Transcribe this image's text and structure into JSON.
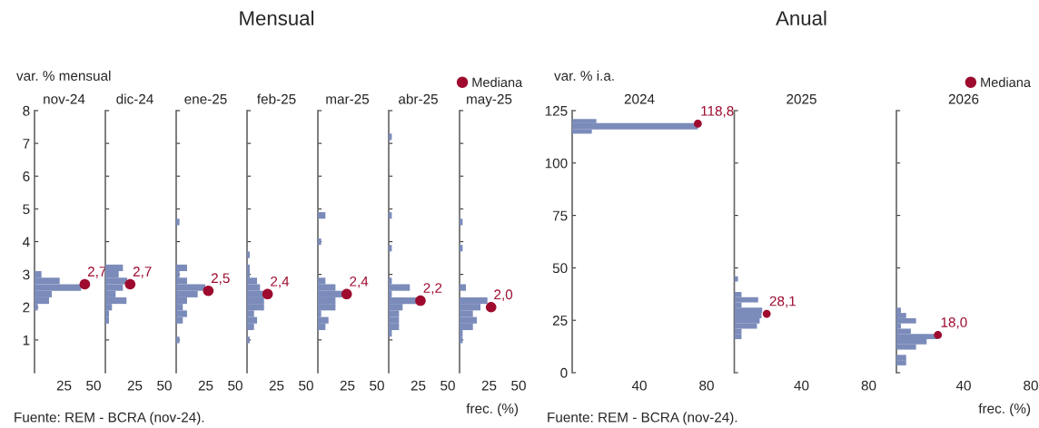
{
  "chart_data": [
    {
      "type": "histogram",
      "orientation": "horizontal",
      "subtitle": "nov-24",
      "ylabel": "var. % mensual",
      "annotations": [
        "Fuente: REM - BCRA (nov-24).",
        {
          "text": "2,7",
          "x": 42.6,
          "y": 2.7
        }
      ],
      "xlim": [
        0,
        50
      ],
      "xticks": [
        25,
        50
      ],
      "ylim": [
        0,
        8
      ],
      "yticks": [
        1,
        2,
        3,
        4,
        5,
        6,
        7,
        8
      ],
      "legend": false,
      "grid": false,
      "series": [
        {
          "color": "#7b8bba",
          "bins": [
            1.9,
            2.1,
            2.3,
            2.5,
            2.7,
            2.9,
            3.1
          ],
          "values": [
            2.8,
            12.3,
            14.6,
            39.5,
            21.3,
            5.9
          ]
        },
        {
          "type": "scatter",
          "color": "#9e0b2f",
          "x": [
            2.7
          ],
          "values": [
            42.6
          ]
        }
      ]
    },
    {
      "type": "histogram",
      "orientation": "horizontal",
      "subtitle": "dic-24",
      "annotations": [
        {
          "text": "2,7",
          "x": 21.0,
          "y": 2.7
        }
      ],
      "xlim": [
        0,
        50
      ],
      "xticks": [
        25,
        50
      ],
      "ylim": [
        0,
        8
      ],
      "yticks": [
        1,
        2,
        3,
        4,
        5,
        6,
        7,
        8
      ],
      "tick_labels": "x",
      "legend": false,
      "grid": false,
      "series": [
        {
          "color": "#7b8bba",
          "bins": [
            1.5,
            1.7,
            1.9,
            2.1,
            2.3,
            2.5,
            2.7,
            2.9,
            3.1,
            3.3
          ],
          "values": [
            3.1,
            3.1,
            5.6,
            17.9,
            8.7,
            14.9,
            18.5,
            11.3,
            14.9
          ]
        },
        {
          "type": "scatter",
          "color": "#9e0b2f",
          "x": [
            2.7
          ],
          "values": [
            21.0
          ]
        }
      ]
    },
    {
      "type": "histogram",
      "orientation": "horizontal",
      "subtitle": "ene-25",
      "annotations": [
        {
          "text": "2,5",
          "x": 27.2,
          "y": 2.5
        }
      ],
      "xlim": [
        0,
        50
      ],
      "xticks": [
        25,
        50
      ],
      "ylim": [
        0,
        8
      ],
      "yticks": [
        1,
        2,
        3,
        4,
        5,
        6,
        7,
        8
      ],
      "tick_labels": "x",
      "legend": false,
      "grid": false,
      "series": [
        {
          "color": "#7b8bba",
          "bins": [
            0.9,
            1.1,
            1.3,
            1.5,
            1.7,
            1.9,
            2.1,
            2.3,
            2.5,
            2.7,
            2.9,
            3.1,
            3.3,
            3.5,
            3.7,
            3.9,
            4.1,
            4.3,
            4.5,
            4.7
          ],
          "values": [
            2.8,
            0,
            0,
            5.6,
            9.2,
            5.6,
            9.2,
            18.2,
            24.6,
            9.2,
            2.8,
            9.2,
            0,
            0,
            0,
            0,
            0,
            0,
            2.8
          ]
        },
        {
          "type": "scatter",
          "color": "#9e0b2f",
          "x": [
            2.5
          ],
          "values": [
            27.2
          ]
        }
      ]
    },
    {
      "type": "histogram",
      "orientation": "horizontal",
      "title": "Mensual",
      "subtitle": "feb-25",
      "annotations": [
        {
          "text": "2,4",
          "x": 17.4,
          "y": 2.4
        }
      ],
      "xlim": [
        0,
        50
      ],
      "xticks": [
        25,
        50
      ],
      "ylim": [
        0,
        8
      ],
      "yticks": [
        1,
        2,
        3,
        4,
        5,
        6,
        7,
        8
      ],
      "tick_labels": "x",
      "legend": false,
      "grid": false,
      "series": [
        {
          "color": "#7b8bba",
          "bins": [
            0.9,
            1.1,
            1.3,
            1.5,
            1.7,
            1.9,
            2.1,
            2.3,
            2.5,
            2.7,
            2.9,
            3.1,
            3.3,
            3.5,
            3.7
          ],
          "values": [
            2.3,
            0,
            5.9,
            8.5,
            5.9,
            14.4,
            14.4,
            14.4,
            11,
            8.5,
            2.3,
            2.3,
            0,
            2.3
          ]
        },
        {
          "type": "scatter",
          "color": "#9e0b2f",
          "x": [
            2.4
          ],
          "values": [
            17.4
          ]
        }
      ]
    },
    {
      "type": "histogram",
      "orientation": "horizontal",
      "subtitle": "mar-25",
      "annotations": [
        {
          "text": "2,4",
          "x": 24.4,
          "y": 2.4
        }
      ],
      "xlim": [
        0,
        50
      ],
      "xticks": [
        25,
        50
      ],
      "ylim": [
        0,
        8
      ],
      "yticks": [
        1,
        2,
        3,
        4,
        5,
        6,
        7,
        8
      ],
      "tick_labels": "x",
      "legend": false,
      "grid": false,
      "series": [
        {
          "color": "#7b8bba",
          "bins": [
            1.3,
            1.5,
            1.7,
            1.9,
            2.1,
            2.3,
            2.5,
            2.7,
            2.9,
            3.1,
            3.3,
            3.5,
            3.7,
            3.9,
            4.1,
            4.3,
            4.5,
            4.7,
            4.9
          ],
          "values": [
            6.4,
            9.0,
            2.8,
            14.9,
            14.9,
            21.3,
            14.9,
            6.4,
            0,
            0,
            0,
            0,
            0,
            2.8,
            0,
            0,
            0,
            6.4
          ]
        },
        {
          "type": "scatter",
          "color": "#9e0b2f",
          "x": [
            2.4
          ],
          "values": [
            24.4
          ]
        }
      ]
    },
    {
      "type": "histogram",
      "orientation": "horizontal",
      "subtitle": "abr-25",
      "annotations": [
        {
          "text": "2,2",
          "x": 26.9,
          "y": 2.2
        }
      ],
      "xlim": [
        0,
        50
      ],
      "xticks": [
        25,
        50
      ],
      "ylim": [
        0,
        8
      ],
      "yticks": [
        1,
        2,
        3,
        4,
        5,
        6,
        7,
        8
      ],
      "tick_labels": "x",
      "legend": false,
      "grid": false,
      "series": [
        {
          "color": "#7b8bba",
          "bins": [
            1.1,
            1.3,
            1.5,
            1.7,
            1.9,
            2.1,
            2.3,
            2.5,
            2.7,
            2.9,
            3.1,
            3.3,
            3.5,
            3.7,
            3.9,
            4.1,
            4.3,
            4.5,
            4.7,
            4.9,
            5.1,
            5.3,
            5.5,
            5.7,
            5.9,
            6.1,
            6.3,
            6.5,
            6.7,
            6.9,
            7.1,
            7.3
          ],
          "values": [
            2.6,
            8.7,
            8.7,
            8.7,
            11.8,
            30.3,
            2.6,
            17.9,
            2.6,
            0,
            0,
            0,
            0,
            2.6,
            0,
            0,
            0,
            0,
            2.6,
            0,
            0,
            0,
            0,
            0,
            0,
            0,
            0,
            0,
            0,
            0,
            2.6
          ]
        },
        {
          "type": "scatter",
          "color": "#9e0b2f",
          "x": [
            2.2
          ],
          "values": [
            26.9
          ]
        }
      ]
    },
    {
      "type": "histogram",
      "orientation": "horizontal",
      "subtitle": "may-25",
      "xlabel": "frec. (%)",
      "annotations": [
        {
          "text": "2,0",
          "x": 26.7,
          "y": 2.0
        }
      ],
      "xlim": [
        0,
        50
      ],
      "xticks": [
        25,
        50
      ],
      "ylim": [
        0,
        8
      ],
      "yticks": [
        1,
        2,
        3,
        4,
        5,
        6,
        7,
        8
      ],
      "tick_labels": "x",
      "legend": "top",
      "grid": false,
      "series": [
        {
          "color": "#7b8bba",
          "bins": [
            0.9,
            1.1,
            1.3,
            1.5,
            1.7,
            1.9,
            2.1,
            2.3,
            2.5,
            2.7,
            2.9,
            3.1,
            3.3,
            3.5,
            3.7,
            3.9,
            4.1,
            4.3,
            4.5,
            4.7
          ],
          "values": [
            2.6,
            2.6,
            11.3,
            14.6,
            11.3,
            17.7,
            23.6,
            0,
            5.4,
            0,
            0,
            0,
            0,
            0,
            2.6,
            0,
            0,
            0,
            2.6
          ]
        },
        {
          "type": "scatter",
          "name": "Mediana",
          "color": "#9e0b2f",
          "x": [
            2.0
          ],
          "values": [
            26.7
          ]
        }
      ]
    },
    {
      "type": "histogram",
      "orientation": "horizontal",
      "subtitle": "2024",
      "ylabel": "var. % i.a.",
      "annotations": [
        "Fuente: REM - BCRA (nov-24).",
        {
          "text": "118,8",
          "x": 74.8,
          "y": 118.8
        }
      ],
      "xlim": [
        0,
        80
      ],
      "xticks": [
        40,
        80
      ],
      "ylim": [
        0,
        125
      ],
      "yticks": [
        0,
        25,
        50,
        75,
        100,
        125
      ],
      "legend": false,
      "grid": false,
      "series": [
        {
          "color": "#7b8bba",
          "bins": [
            114,
            116,
            119,
            121
          ],
          "values": [
            11.7,
            74.8,
            14.4
          ]
        },
        {
          "type": "scatter",
          "color": "#9e0b2f",
          "x": [
            118.8
          ],
          "values": [
            74.8
          ]
        }
      ]
    },
    {
      "type": "histogram",
      "orientation": "horizontal",
      "title": "Anual",
      "subtitle": "2025",
      "annotations": [
        {
          "text": "28,1",
          "x": 19.3,
          "y": 28.1
        }
      ],
      "xlim": [
        0,
        80
      ],
      "xticks": [
        40,
        80
      ],
      "ylim": [
        0,
        125
      ],
      "yticks": [
        0,
        25,
        50,
        75,
        100,
        125
      ],
      "tick_labels": "x",
      "legend": false,
      "grid": false,
      "series": [
        {
          "color": "#7b8bba",
          "bins": [
            16,
            18.5,
            21,
            23.5,
            26,
            28.5,
            31,
            33.5,
            36,
            38.5,
            41,
            43.5,
            46
          ],
          "values": [
            4.3,
            4.3,
            13.5,
            15.1,
            16.2,
            16.6,
            4.3,
            14.2,
            4.3,
            0,
            0,
            2.2
          ]
        },
        {
          "type": "scatter",
          "color": "#9e0b2f",
          "x": [
            28.1
          ],
          "values": [
            19.3
          ]
        }
      ]
    },
    {
      "type": "histogram",
      "orientation": "horizontal",
      "subtitle": "2026",
      "xlabel": "frec. (%)",
      "annotations": [
        {
          "text": "18,0",
          "x": 24.7,
          "y": 18.0
        }
      ],
      "xlim": [
        0,
        80
      ],
      "xticks": [
        40,
        80
      ],
      "ylim": [
        0,
        125
      ],
      "yticks": [
        0,
        25,
        50,
        75,
        100,
        125
      ],
      "tick_labels": "x",
      "legend": "top right",
      "grid": false,
      "series": [
        {
          "color": "#7b8bba",
          "bins": [
            3.5,
            6,
            8.5,
            11,
            13.5,
            16,
            18.5,
            21,
            23.5,
            26,
            28.5,
            31
          ],
          "values": [
            5.8,
            5.8,
            0,
            11.7,
            18,
            24.3,
            8.6,
            2.7,
            11.7,
            5.8,
            2.7
          ]
        },
        {
          "type": "scatter",
          "name": "Mediana",
          "color": "#9e0b2f",
          "x": [
            18.0
          ],
          "values": [
            24.7
          ]
        }
      ]
    }
  ]
}
